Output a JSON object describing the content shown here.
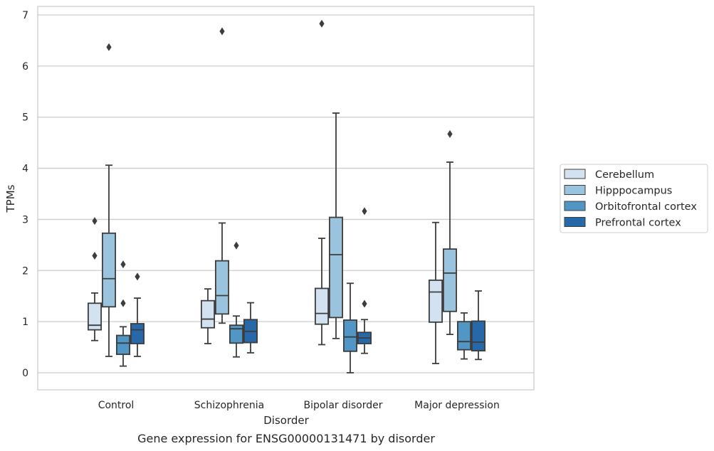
{
  "chart_data": {
    "type": "box",
    "caption": "Gene expression for ENSG00000131471 by disorder",
    "xlabel": "Disorder",
    "ylabel": "TPMs",
    "ylim": [
      -0.33,
      7.18
    ],
    "yticks": [
      0,
      1,
      2,
      3,
      4,
      5,
      6,
      7
    ],
    "grid": "horizontal",
    "legend_position": "right",
    "categories": [
      "Control",
      "Schizophrenia",
      "Bipolar disorder",
      "Major depression"
    ],
    "series": [
      {
        "name": "Cerebellum",
        "color": "#d2e2f0",
        "boxes": [
          {
            "whisker_low": 0.63,
            "q1": 0.84,
            "median": 0.93,
            "q3": 1.36,
            "whisker_high": 1.56,
            "outliers": [
              2.29,
              2.97
            ]
          },
          {
            "whisker_low": 0.57,
            "q1": 0.88,
            "median": 1.05,
            "q3": 1.41,
            "whisker_high": 1.64,
            "outliers": []
          },
          {
            "whisker_low": 0.55,
            "q1": 0.95,
            "median": 1.16,
            "q3": 1.65,
            "whisker_high": 2.63,
            "outliers": [
              6.83
            ]
          },
          {
            "whisker_low": 0.18,
            "q1": 0.99,
            "median": 1.58,
            "q3": 1.81,
            "whisker_high": 2.94,
            "outliers": []
          }
        ]
      },
      {
        "name": "Hipppocampus",
        "color": "#9ac4dd",
        "boxes": [
          {
            "whisker_low": 0.32,
            "q1": 1.29,
            "median": 1.84,
            "q3": 2.73,
            "whisker_high": 4.06,
            "outliers": [
              6.37
            ]
          },
          {
            "whisker_low": 0.97,
            "q1": 1.15,
            "median": 1.51,
            "q3": 2.19,
            "whisker_high": 2.93,
            "outliers": [
              6.68
            ]
          },
          {
            "whisker_low": 0.67,
            "q1": 1.08,
            "median": 2.31,
            "q3": 3.04,
            "whisker_high": 5.08,
            "outliers": []
          },
          {
            "whisker_low": 0.75,
            "q1": 1.2,
            "median": 1.95,
            "q3": 2.42,
            "whisker_high": 4.12,
            "outliers": [
              4.67
            ]
          }
        ]
      },
      {
        "name": "Orbitofrontal cortex",
        "color": "#5196c4",
        "boxes": [
          {
            "whisker_low": 0.13,
            "q1": 0.36,
            "median": 0.58,
            "q3": 0.73,
            "whisker_high": 0.9,
            "outliers": [
              1.36,
              2.12
            ]
          },
          {
            "whisker_low": 0.31,
            "q1": 0.58,
            "median": 0.86,
            "q3": 0.93,
            "whisker_high": 1.11,
            "outliers": [
              2.49
            ]
          },
          {
            "whisker_low": 0.0,
            "q1": 0.42,
            "median": 0.7,
            "q3": 1.03,
            "whisker_high": 1.75,
            "outliers": []
          },
          {
            "whisker_low": 0.27,
            "q1": 0.45,
            "median": 0.61,
            "q3": 1.0,
            "whisker_high": 1.17,
            "outliers": []
          }
        ]
      },
      {
        "name": "Prefrontal cortex",
        "color": "#2768a9",
        "boxes": [
          {
            "whisker_low": 0.32,
            "q1": 0.57,
            "median": 0.84,
            "q3": 0.96,
            "whisker_high": 1.46,
            "outliers": [
              1.88
            ]
          },
          {
            "whisker_low": 0.39,
            "q1": 0.59,
            "median": 0.81,
            "q3": 1.04,
            "whisker_high": 1.37,
            "outliers": []
          },
          {
            "whisker_low": 0.38,
            "q1": 0.57,
            "median": 0.68,
            "q3": 0.79,
            "whisker_high": 1.04,
            "outliers": [
              1.35,
              3.16
            ]
          },
          {
            "whisker_low": 0.26,
            "q1": 0.43,
            "median": 0.6,
            "q3": 1.01,
            "whisker_high": 1.6,
            "outliers": []
          }
        ]
      }
    ]
  }
}
